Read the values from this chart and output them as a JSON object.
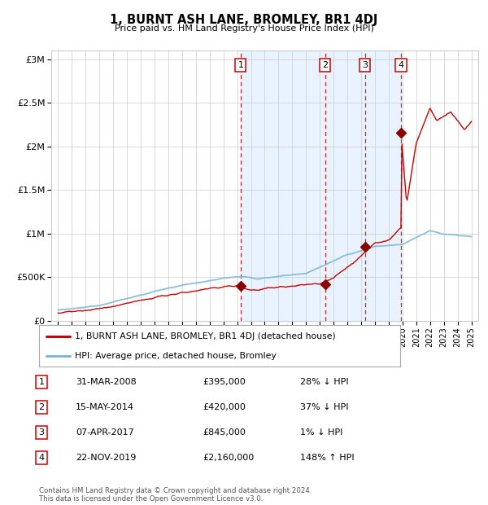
{
  "title": "1, BURNT ASH LANE, BROMLEY, BR1 4DJ",
  "subtitle": "Price paid vs. HM Land Registry's House Price Index (HPI)",
  "legend_line1": "1, BURNT ASH LANE, BROMLEY, BR1 4DJ (detached house)",
  "legend_line2": "HPI: Average price, detached house, Bromley",
  "footer1": "Contains HM Land Registry data © Crown copyright and database right 2024.",
  "footer2": "This data is licensed under the Open Government Licence v3.0.",
  "sales": [
    {
      "num": 1,
      "date": "2008-03-31",
      "price": 395000,
      "label": "31-MAR-2008",
      "price_label": "£395,000",
      "hpi_rel": "28% ↓ HPI",
      "x_year": 2008.25
    },
    {
      "num": 2,
      "date": "2014-05-15",
      "price": 420000,
      "label": "15-MAY-2014",
      "price_label": "£420,000",
      "hpi_rel": "37% ↓ HPI",
      "x_year": 2014.37
    },
    {
      "num": 3,
      "date": "2017-04-07",
      "price": 845000,
      "label": "07-APR-2017",
      "price_label": "£845,000",
      "hpi_rel": "1% ↓ HPI",
      "x_year": 2017.27
    },
    {
      "num": 4,
      "date": "2019-11-22",
      "price": 2160000,
      "label": "22-NOV-2019",
      "price_label": "£2,160,000",
      "hpi_rel": "148% ↑ HPI",
      "x_year": 2019.89
    }
  ],
  "sale_prices": [
    395000,
    420000,
    845000,
    2160000
  ],
  "hpi_color": "#7fb8d8",
  "price_color": "#cc0000",
  "sale_dot_color": "#880000",
  "vline_color": "#cc0000",
  "shade_color": "#ddeeff",
  "grid_color": "#cccccc",
  "bg_color": "#ffffff",
  "ylim": [
    0,
    3100000
  ],
  "yticks": [
    0,
    500000,
    1000000,
    1500000,
    2000000,
    2500000,
    3000000
  ],
  "ytick_labels": [
    "£0",
    "£500K",
    "£1M",
    "£1.5M",
    "£2M",
    "£2.5M",
    "£3M"
  ],
  "xlim_start": 1994.5,
  "xlim_end": 2025.5,
  "xticks": [
    1995,
    1996,
    1997,
    1998,
    1999,
    2000,
    2001,
    2002,
    2003,
    2004,
    2005,
    2006,
    2007,
    2008,
    2009,
    2010,
    2011,
    2012,
    2013,
    2014,
    2015,
    2016,
    2017,
    2018,
    2019,
    2020,
    2021,
    2022,
    2023,
    2024,
    2025
  ]
}
